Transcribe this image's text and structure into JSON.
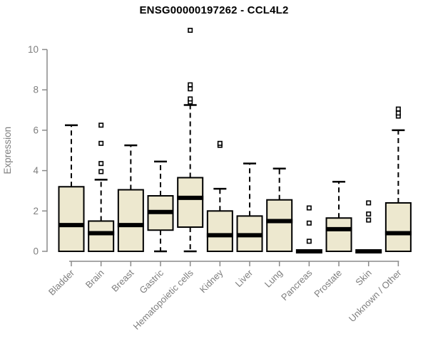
{
  "colors": {
    "box_fill": "#EDE8CF",
    "box_stroke": "#000000",
    "median_stroke": "#000000",
    "whisker_stroke": "#000000",
    "outlier_stroke": "#000000",
    "outlier_fill": "#ffffff",
    "axis": "#8a8a8a",
    "tick_label": "#7e7e7e",
    "title": "#000000",
    "background": "#ffffff"
  },
  "chart_data": {
    "type": "boxplot",
    "title": "ENSG00000197262 - CCL4L2",
    "xlabel": "",
    "ylabel": "Expression",
    "ylim": [
      0,
      11
    ],
    "yticks": [
      0,
      2,
      4,
      6,
      8,
      10
    ],
    "grid": false,
    "legend": null,
    "categories": [
      "Bladder",
      "Brain",
      "Breast",
      "Gastric",
      "Hematopoietic cells",
      "Kidney",
      "Liver",
      "Lung",
      "Pancreas",
      "Prostate",
      "Skin",
      "Unknown / Other"
    ],
    "boxes": [
      {
        "category": "Bladder",
        "whisker_low": 0,
        "q1": 0,
        "median": 1.3,
        "q3": 3.2,
        "whisker_high": 6.25,
        "outliers": []
      },
      {
        "category": "Brain",
        "whisker_low": 0,
        "q1": 0,
        "median": 0.9,
        "q3": 1.5,
        "whisker_high": 3.55,
        "outliers": [
          3.95,
          4.35,
          5.35,
          6.25
        ]
      },
      {
        "category": "Breast",
        "whisker_low": 0,
        "q1": 0,
        "median": 1.3,
        "q3": 3.05,
        "whisker_high": 5.25,
        "outliers": []
      },
      {
        "category": "Gastric",
        "whisker_low": 0,
        "q1": 1.05,
        "median": 1.95,
        "q3": 2.75,
        "whisker_high": 4.45,
        "outliers": []
      },
      {
        "category": "Hematopoietic cells",
        "whisker_low": 0,
        "q1": 1.2,
        "median": 2.65,
        "q3": 3.65,
        "whisker_high": 7.25,
        "outliers": [
          7.4,
          7.55,
          8.05,
          8.25,
          10.95
        ]
      },
      {
        "category": "Kidney",
        "whisker_low": 0,
        "q1": 0,
        "median": 0.8,
        "q3": 2.0,
        "whisker_high": 3.1,
        "outliers": [
          5.25,
          5.35
        ]
      },
      {
        "category": "Liver",
        "whisker_low": 0,
        "q1": 0,
        "median": 0.8,
        "q3": 1.75,
        "whisker_high": 4.35,
        "outliers": []
      },
      {
        "category": "Lung",
        "whisker_low": 0,
        "q1": 0,
        "median": 1.5,
        "q3": 2.55,
        "whisker_high": 4.1,
        "outliers": []
      },
      {
        "category": "Pancreas",
        "whisker_low": 0,
        "q1": 0,
        "median": 0,
        "q3": 0,
        "whisker_high": 0,
        "outliers": [
          0.5,
          1.4,
          2.15
        ]
      },
      {
        "category": "Prostate",
        "whisker_low": 0,
        "q1": 0,
        "median": 1.1,
        "q3": 1.65,
        "whisker_high": 3.45,
        "outliers": []
      },
      {
        "category": "Skin",
        "whisker_low": 0,
        "q1": 0,
        "median": 0,
        "q3": 0,
        "whisker_high": 0,
        "outliers": [
          1.55,
          1.85,
          2.4
        ]
      },
      {
        "category": "Unknown / Other",
        "whisker_low": 0,
        "q1": 0,
        "median": 0.9,
        "q3": 2.4,
        "whisker_high": 6.0,
        "outliers": [
          6.7,
          6.85,
          7.05
        ]
      }
    ]
  }
}
